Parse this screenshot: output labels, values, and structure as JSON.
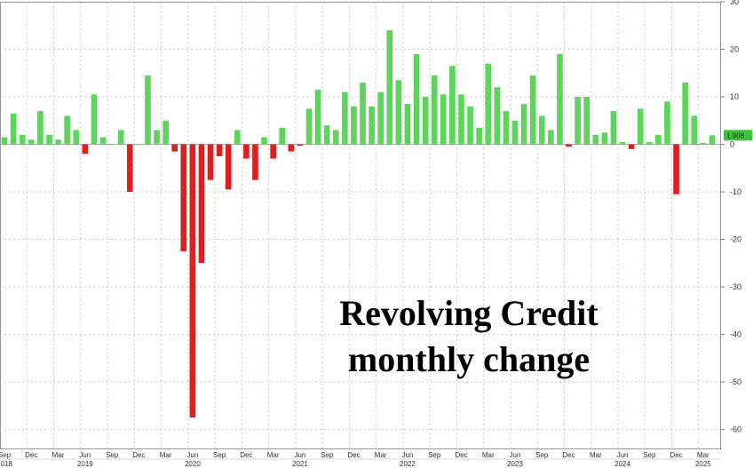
{
  "chart_data": {
    "type": "bar",
    "title_lines": [
      "Revolving Credit",
      "monthly change"
    ],
    "xlabel": "",
    "ylabel": "",
    "ylim": [
      -64,
      30
    ],
    "y_ticks": [
      30,
      20,
      10,
      0,
      -10,
      -20,
      -30,
      -40,
      -50,
      -60
    ],
    "grid": true,
    "colors": {
      "positive": "#5dd55d",
      "negative": "#dd1f1f",
      "last_label_bg": "#3cc43c"
    },
    "last_value_label": "1.908",
    "x_month_ticks": [
      {
        "label": "Sep",
        "index": 0
      },
      {
        "label": "Dec",
        "index": 3
      },
      {
        "label": "Mar",
        "index": 6
      },
      {
        "label": "Jun",
        "index": 9
      },
      {
        "label": "Sep",
        "index": 12
      },
      {
        "label": "Dec",
        "index": 15
      },
      {
        "label": "Mar",
        "index": 18
      },
      {
        "label": "Jun",
        "index": 21
      },
      {
        "label": "Sep",
        "index": 24
      },
      {
        "label": "Dec",
        "index": 27
      },
      {
        "label": "Mar",
        "index": 30
      },
      {
        "label": "Jun",
        "index": 33
      },
      {
        "label": "Sep",
        "index": 36
      },
      {
        "label": "Dec",
        "index": 39
      },
      {
        "label": "Mar",
        "index": 42
      },
      {
        "label": "Jun",
        "index": 45
      },
      {
        "label": "Sep",
        "index": 48
      },
      {
        "label": "Dec",
        "index": 51
      },
      {
        "label": "Mar",
        "index": 54
      },
      {
        "label": "Jun",
        "index": 57
      },
      {
        "label": "Sep",
        "index": 60
      },
      {
        "label": "Dec",
        "index": 63
      },
      {
        "label": "Mar",
        "index": 66
      },
      {
        "label": "Jun",
        "index": 69
      },
      {
        "label": "Sep",
        "index": 72
      },
      {
        "label": "Dec",
        "index": 75
      },
      {
        "label": "Mar",
        "index": 78
      }
    ],
    "x_year_ticks": [
      {
        "label": "2018",
        "index": 0
      },
      {
        "label": "2019",
        "index": 9
      },
      {
        "label": "2020",
        "index": 21
      },
      {
        "label": "2021",
        "index": 33
      },
      {
        "label": "2022",
        "index": 45
      },
      {
        "label": "2023",
        "index": 57
      },
      {
        "label": "2024",
        "index": 69
      },
      {
        "label": "2025",
        "index": 78
      }
    ],
    "series": [
      {
        "values": [
          1.5,
          6.5,
          2,
          1,
          7,
          2,
          1,
          6,
          3,
          -2,
          10.5,
          1.5,
          0,
          3,
          -10,
          0,
          14.5,
          3,
          5,
          -1.5,
          -22.5,
          -57.5,
          -25,
          -7.5,
          -2.5,
          -9.5,
          3,
          -3,
          -7.5,
          1.5,
          -3,
          3.5,
          -1.5,
          -0.3,
          7.5,
          11.5,
          4,
          3,
          11,
          8,
          13,
          8,
          11,
          24,
          13.5,
          8.5,
          19,
          10,
          14.5,
          10.5,
          16.5,
          10.5,
          8,
          3.5,
          17,
          12,
          7,
          5,
          8.5,
          14.5,
          6,
          3,
          19,
          -0.5,
          10,
          10,
          2,
          2.5,
          7,
          0.5,
          -1,
          7.5,
          0.5,
          2,
          9,
          -10.5,
          13,
          6,
          0.3,
          1.908
        ]
      }
    ]
  }
}
